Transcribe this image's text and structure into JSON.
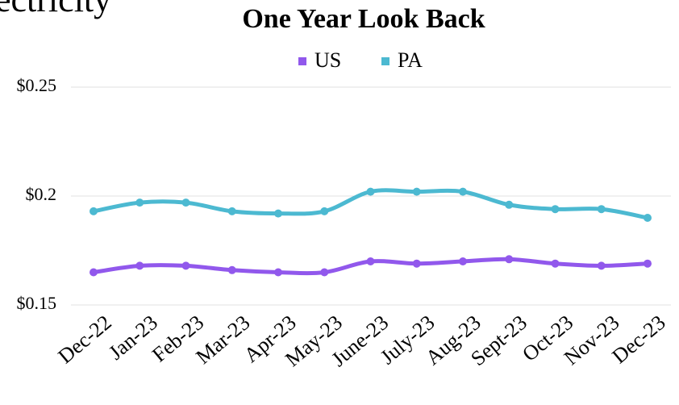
{
  "header_fragment": "ectricity",
  "chart_data": {
    "type": "line",
    "title": "One Year Look Back",
    "categories": [
      "Dec-22",
      "Jan-23",
      "Feb-23",
      "Mar-23",
      "Apr-23",
      "May-23",
      "June-23",
      "July-23",
      "Aug-23",
      "Sept-23",
      "Oct-23",
      "Nov-23",
      "Dec-23"
    ],
    "series": [
      {
        "name": "US",
        "color": "#9158ec",
        "values": [
          0.165,
          0.168,
          0.168,
          0.166,
          0.165,
          0.165,
          0.17,
          0.169,
          0.17,
          0.171,
          0.169,
          0.168,
          0.169
        ]
      },
      {
        "name": "PA",
        "color": "#4cb9d1",
        "values": [
          0.193,
          0.197,
          0.197,
          0.193,
          0.192,
          0.193,
          0.202,
          0.202,
          0.202,
          0.196,
          0.194,
          0.194,
          0.19
        ]
      }
    ],
    "ylim": [
      0.15,
      0.25
    ],
    "yticks": [
      {
        "value": 0.15,
        "label": "$0.15"
      },
      {
        "value": 0.2,
        "label": "$0.2"
      },
      {
        "value": 0.25,
        "label": "$0.25"
      }
    ],
    "grid": true,
    "legend": "top"
  }
}
